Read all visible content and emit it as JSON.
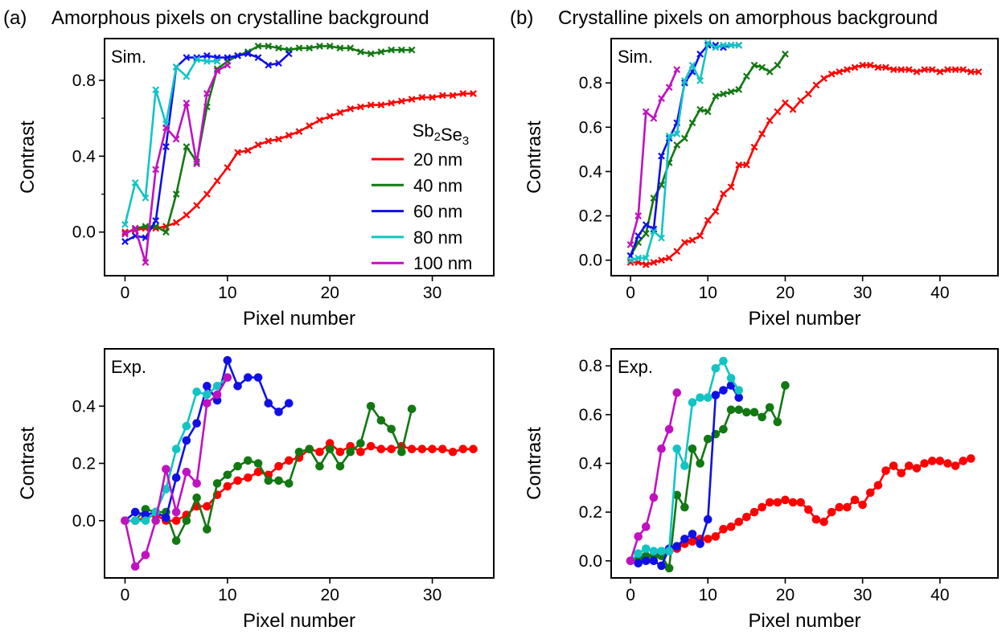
{
  "headers": [
    {
      "tag": "(a)",
      "title": "Amorphous pixels on crystalline background"
    },
    {
      "tag": "(b)",
      "title": "Crystalline pixels on amorphous background"
    }
  ],
  "legend": {
    "title": "Sb₂Se₃",
    "entries": [
      "20 nm",
      "40 nm",
      "60 nm",
      "80 nm",
      "100 nm"
    ],
    "placement": "right, inside panel (a) Sim."
  },
  "colors": {
    "20 nm": "#ff0000",
    "40 nm": "#127812",
    "60 nm": "#1010e6",
    "80 nm": "#12c4c4",
    "100 nm": "#c012c0"
  },
  "chart_data": [
    {
      "type": "line",
      "marker": "x",
      "corner_label": "Sim.",
      "xlabel": "Pixel number",
      "ylabel": "Contrast",
      "xlim": [
        -2,
        36
      ],
      "ylim": [
        -0.23,
        1.02
      ],
      "xticks": [
        0,
        10,
        20,
        30
      ],
      "yticks": [
        0.0,
        0.4,
        0.8
      ],
      "yticklabels": [
        "0.0",
        "0.4",
        "0.8"
      ],
      "yminorticks": [
        0.2,
        0.6
      ],
      "series": [
        {
          "name": "20 nm",
          "x": [
            0,
            1,
            2,
            3,
            4,
            5,
            6,
            7,
            8,
            9,
            10,
            11,
            12,
            13,
            14,
            15,
            16,
            17,
            18,
            19,
            20,
            21,
            22,
            23,
            24,
            25,
            26,
            27,
            28,
            29,
            30,
            31,
            32,
            33,
            34
          ],
          "y": [
            0,
            0.01,
            0.02,
            0.02,
            0.03,
            0.05,
            0.09,
            0.14,
            0.2,
            0.27,
            0.34,
            0.42,
            0.43,
            0.46,
            0.48,
            0.49,
            0.51,
            0.53,
            0.56,
            0.59,
            0.61,
            0.63,
            0.65,
            0.66,
            0.67,
            0.67,
            0.68,
            0.69,
            0.7,
            0.71,
            0.71,
            0.72,
            0.72,
            0.73,
            0.73
          ]
        },
        {
          "name": "40 nm",
          "x": [
            0,
            1,
            2,
            3,
            4,
            5,
            6,
            7,
            8,
            9,
            10,
            11,
            12,
            13,
            14,
            15,
            16,
            17,
            18,
            19,
            20,
            21,
            22,
            23,
            24,
            25,
            26,
            27,
            28
          ],
          "y": [
            -0.01,
            0.02,
            0.03,
            0.03,
            0,
            0.2,
            0.45,
            0.37,
            0.66,
            0.86,
            0.9,
            0.93,
            0.95,
            0.98,
            0.98,
            0.97,
            0.96,
            0.97,
            0.97,
            0.98,
            0.98,
            0.97,
            0.97,
            0.95,
            0.94,
            0.95,
            0.96,
            0.96,
            0.96
          ]
        },
        {
          "name": "60 nm",
          "x": [
            0,
            1,
            2,
            3,
            4,
            5,
            6,
            7,
            8,
            9,
            10,
            11,
            12,
            13,
            14,
            15,
            16
          ],
          "y": [
            -0.05,
            -0.02,
            -0.03,
            0.06,
            0.45,
            0.87,
            0.92,
            0.92,
            0.93,
            0.92,
            0.92,
            0.93,
            0.94,
            0.92,
            0.88,
            0.89,
            0.94
          ]
        },
        {
          "name": "80 nm",
          "x": [
            0,
            1,
            2,
            3,
            4,
            5,
            6,
            7,
            8,
            9
          ],
          "y": [
            0.04,
            0.26,
            0.18,
            0.75,
            0.57,
            0.87,
            0.82,
            0.91,
            0.9,
            0.9
          ]
        },
        {
          "name": "100 nm",
          "x": [
            0,
            1,
            2,
            3,
            4,
            5,
            6,
            7,
            8,
            9,
            10
          ],
          "y": [
            -0.01,
            0.02,
            -0.16,
            0.33,
            0.55,
            0.49,
            0.68,
            0.36,
            0.73,
            0.85,
            0.88
          ]
        }
      ]
    },
    {
      "type": "line",
      "marker": "x",
      "corner_label": "Sim.",
      "xlabel": "Pixel number",
      "ylabel": "Contrast",
      "xlim": [
        -2.5,
        47.5
      ],
      "ylim": [
        -0.07,
        1.0
      ],
      "xticks": [
        0,
        10,
        20,
        30,
        40
      ],
      "yticks": [
        0.0,
        0.2,
        0.4,
        0.6,
        0.8
      ],
      "yticklabels": [
        "0.0",
        "0.2",
        "0.4",
        "0.6",
        "0.8"
      ],
      "yminorticks": [],
      "series": [
        {
          "name": "20 nm",
          "x": [
            0,
            1,
            2,
            3,
            4,
            5,
            6,
            7,
            8,
            9,
            10,
            11,
            12,
            13,
            14,
            15,
            16,
            17,
            18,
            19,
            20,
            21,
            22,
            23,
            24,
            25,
            26,
            27,
            28,
            29,
            30,
            31,
            32,
            33,
            34,
            35,
            36,
            37,
            38,
            39,
            40,
            41,
            42,
            43,
            44,
            45
          ],
          "y": [
            -0.01,
            -0.01,
            -0.02,
            -0.01,
            0,
            0.01,
            0.04,
            0.08,
            0.09,
            0.11,
            0.18,
            0.22,
            0.3,
            0.33,
            0.43,
            0.43,
            0.51,
            0.57,
            0.63,
            0.67,
            0.71,
            0.68,
            0.72,
            0.75,
            0.79,
            0.82,
            0.84,
            0.85,
            0.86,
            0.87,
            0.88,
            0.88,
            0.87,
            0.87,
            0.86,
            0.86,
            0.86,
            0.85,
            0.86,
            0.86,
            0.85,
            0.86,
            0.86,
            0.86,
            0.85,
            0.85
          ]
        },
        {
          "name": "40 nm",
          "x": [
            0,
            1,
            2,
            3,
            4,
            5,
            6,
            7,
            8,
            9,
            10,
            11,
            12,
            13,
            14,
            15,
            16,
            17,
            18,
            19,
            20
          ],
          "y": [
            0.02,
            0.08,
            0.12,
            0.28,
            0.34,
            0.44,
            0.52,
            0.55,
            0.62,
            0.68,
            0.67,
            0.74,
            0.75,
            0.76,
            0.77,
            0.83,
            0.88,
            0.87,
            0.85,
            0.88,
            0.93
          ]
        },
        {
          "name": "60 nm",
          "x": [
            0,
            1,
            2,
            3,
            4,
            5,
            6,
            7,
            8,
            9,
            10,
            11,
            12,
            13,
            14
          ],
          "y": [
            0.02,
            0.11,
            0.16,
            0.14,
            0.47,
            0.55,
            0.62,
            0.8,
            0.85,
            0.93,
            0.97,
            0.97,
            0.96,
            0.97,
            0.97
          ]
        },
        {
          "name": "80 nm",
          "x": [
            0,
            1,
            2,
            3,
            4,
            5,
            6,
            7,
            8,
            9,
            10,
            11,
            12,
            13,
            14
          ],
          "y": [
            0,
            0.01,
            0.01,
            0.13,
            0.1,
            0.56,
            0.57,
            0.81,
            0.88,
            0.81,
            0.98,
            0.96,
            0.97,
            0.97,
            0.97
          ]
        },
        {
          "name": "100 nm",
          "x": [
            0,
            1,
            2,
            3,
            4,
            5,
            6
          ],
          "y": [
            0.07,
            0.2,
            0.67,
            0.64,
            0.73,
            0.78,
            0.86
          ]
        }
      ]
    },
    {
      "type": "line",
      "marker": "o",
      "corner_label": "Exp.",
      "xlabel": "Pixel number",
      "ylabel": "Contrast",
      "xlim": [
        -2,
        36
      ],
      "ylim": [
        -0.2,
        0.6
      ],
      "xticks": [
        0,
        10,
        20,
        30
      ],
      "yticks": [
        0.0,
        0.2,
        0.4
      ],
      "yticklabels": [
        "0.0",
        "0.2",
        "0.4"
      ],
      "yminorticks": [],
      "series": [
        {
          "name": "20 nm",
          "x": [
            0,
            1,
            2,
            3,
            4,
            5,
            6,
            7,
            8,
            9,
            10,
            11,
            12,
            13,
            14,
            15,
            16,
            17,
            18,
            19,
            20,
            21,
            22,
            23,
            24,
            25,
            26,
            27,
            28,
            29,
            30,
            31,
            32,
            33,
            34
          ],
          "y": [
            0,
            0,
            0.01,
            0.02,
            0,
            0,
            0.02,
            0.05,
            0.05,
            0.09,
            0.12,
            0.14,
            0.15,
            0.17,
            0.16,
            0.19,
            0.21,
            0.22,
            0.25,
            0.24,
            0.27,
            0.24,
            0.26,
            0.24,
            0.26,
            0.25,
            0.25,
            0.26,
            0.25,
            0.25,
            0.25,
            0.25,
            0.24,
            0.25,
            0.25
          ]
        },
        {
          "name": "40 nm",
          "x": [
            0,
            1,
            2,
            3,
            4,
            5,
            6,
            7,
            8,
            9,
            10,
            11,
            12,
            13,
            14,
            15,
            16,
            17,
            18,
            19,
            20,
            21,
            22,
            23,
            24,
            25,
            26,
            27,
            28
          ],
          "y": [
            0,
            0,
            0.04,
            0.03,
            0.03,
            -0.07,
            0,
            0.08,
            -0.03,
            0.13,
            0.16,
            0.19,
            0.21,
            0.2,
            0.14,
            0.14,
            0.13,
            0.24,
            0.25,
            0.19,
            0.25,
            0.19,
            0.24,
            0.27,
            0.4,
            0.35,
            0.32,
            0.24,
            0.39
          ]
        },
        {
          "name": "60 nm",
          "x": [
            0,
            1,
            2,
            3,
            4,
            5,
            6,
            7,
            8,
            9,
            10,
            11,
            12,
            13,
            14,
            15,
            16
          ],
          "y": [
            0,
            0.03,
            0.02,
            0.03,
            0.01,
            0.15,
            0.28,
            0.34,
            0.47,
            0.42,
            0.56,
            0.47,
            0.5,
            0.5,
            0.41,
            0.38,
            0.41
          ]
        },
        {
          "name": "80 nm",
          "x": [
            0,
            1,
            2,
            3,
            4,
            5,
            6,
            7,
            8,
            9,
            10
          ],
          "y": [
            0,
            0,
            0,
            0.03,
            0.11,
            0.25,
            0.33,
            0.45,
            0.44,
            0.47,
            0.5
          ]
        },
        {
          "name": "100 nm",
          "x": [
            0,
            1,
            2,
            3,
            4,
            5,
            6,
            7,
            8,
            9,
            10
          ],
          "y": [
            0,
            -0.16,
            -0.12,
            0,
            0.18,
            0.03,
            0.17,
            0.13,
            0.41,
            0.44,
            0.5
          ]
        }
      ]
    },
    {
      "type": "line",
      "marker": "o",
      "corner_label": "Exp.",
      "xlabel": "Pixel number",
      "ylabel": "Contrast",
      "xlim": [
        -2.5,
        47.5
      ],
      "ylim": [
        -0.07,
        0.87
      ],
      "xticks": [
        0,
        10,
        20,
        30,
        40
      ],
      "yticks": [
        0.0,
        0.2,
        0.4,
        0.6,
        0.8
      ],
      "yticklabels": [
        "0.0",
        "0.2",
        "0.4",
        "0.6",
        "0.8"
      ],
      "yminorticks": [],
      "series": [
        {
          "name": "20 nm",
          "x": [
            0,
            1,
            2,
            3,
            4,
            5,
            6,
            7,
            8,
            9,
            10,
            11,
            12,
            13,
            14,
            15,
            16,
            17,
            18,
            19,
            20,
            21,
            22,
            23,
            24,
            25,
            26,
            27,
            28,
            29,
            30,
            31,
            32,
            33,
            34,
            35,
            36,
            37,
            38,
            39,
            40,
            41,
            42,
            43,
            44
          ],
          "y": [
            0,
            0.01,
            0.02,
            0.02,
            0.03,
            0.04,
            0.05,
            0.07,
            0.08,
            0.09,
            0.09,
            0.1,
            0.13,
            0.14,
            0.16,
            0.18,
            0.2,
            0.22,
            0.24,
            0.24,
            0.25,
            0.24,
            0.24,
            0.21,
            0.17,
            0.16,
            0.2,
            0.22,
            0.22,
            0.25,
            0.23,
            0.28,
            0.31,
            0.37,
            0.39,
            0.36,
            0.39,
            0.38,
            0.4,
            0.41,
            0.41,
            0.4,
            0.39,
            0.41,
            0.42
          ]
        },
        {
          "name": "40 nm",
          "x": [
            0,
            1,
            2,
            3,
            4,
            5,
            6,
            7,
            8,
            9,
            10,
            11,
            12,
            13,
            14,
            15,
            16,
            17,
            18,
            19,
            20
          ],
          "y": [
            0,
            0.01,
            0.02,
            0.02,
            0.02,
            -0.03,
            0.27,
            0.22,
            0.46,
            0.4,
            0.5,
            0.52,
            0.54,
            0.62,
            0.62,
            0.61,
            0.61,
            0.59,
            0.63,
            0.57,
            0.72
          ]
        },
        {
          "name": "60 nm",
          "x": [
            0,
            1,
            2,
            3,
            4,
            5,
            6,
            7,
            8,
            9,
            10,
            11,
            12,
            13,
            14
          ],
          "y": [
            0,
            -0.01,
            0,
            0,
            -0.02,
            0.05,
            0.06,
            0.09,
            0.11,
            0.07,
            0.17,
            0.68,
            0.7,
            0.72,
            0.67
          ]
        },
        {
          "name": "80 nm",
          "x": [
            0,
            1,
            2,
            3,
            4,
            5,
            6,
            7,
            8,
            9,
            10,
            11,
            12,
            13,
            14
          ],
          "y": [
            0,
            0.03,
            0.05,
            0.04,
            0.04,
            0.04,
            0.46,
            0.39,
            0.65,
            0.67,
            0.67,
            0.79,
            0.82,
            0.75,
            0.7
          ]
        },
        {
          "name": "100 nm",
          "x": [
            0,
            1,
            2,
            3,
            4,
            5,
            6
          ],
          "y": [
            0,
            0.1,
            0.14,
            0.26,
            0.46,
            0.54,
            0.69
          ]
        }
      ]
    }
  ]
}
